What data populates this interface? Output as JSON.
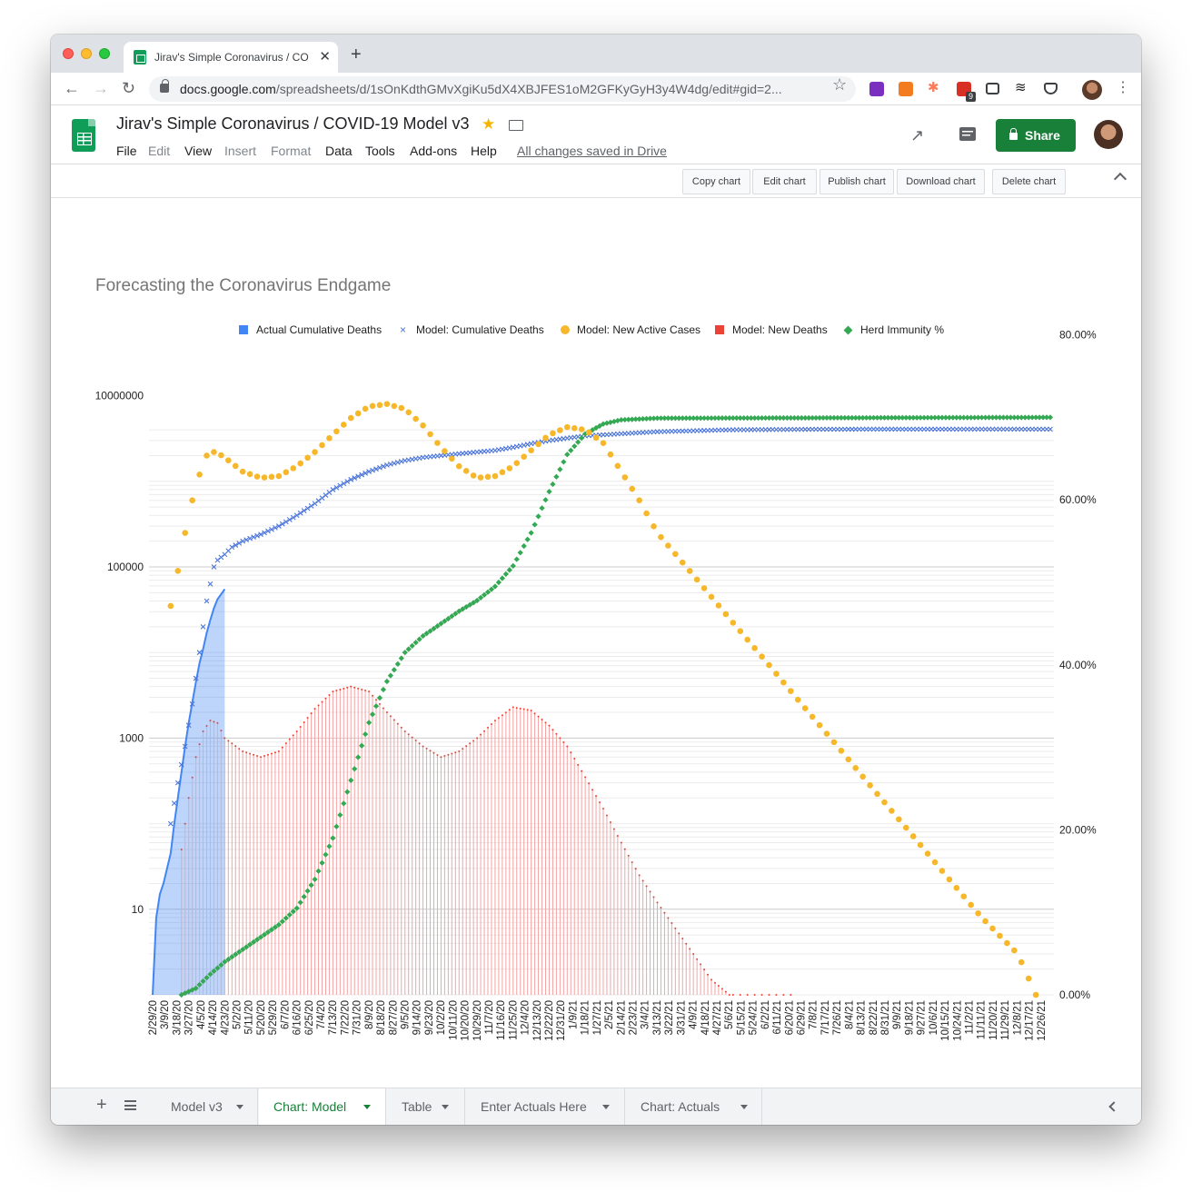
{
  "browser": {
    "tab_title": "Jirav's Simple Coronavirus / CO",
    "url_host": "docs.google.com",
    "url_path": "/spreadsheets/d/1sOnKdthGMvXgiKu5dX4XBJFES1oM2GFKyGyH3y4W4dg/edit#gid=2...",
    "extension_badge": "9"
  },
  "docs": {
    "title": "Jirav's Simple Coronavirus / COVID-19 Model v3",
    "menu": [
      "File",
      "Edit",
      "View",
      "Insert",
      "Format",
      "Data",
      "Tools",
      "Add-ons",
      "Help"
    ],
    "saved_status": "All changes saved in Drive",
    "share_label": "Share"
  },
  "chart_toolbar": {
    "buttons": [
      "Copy chart",
      "Edit chart",
      "Publish chart",
      "Download chart",
      "Delete chart"
    ]
  },
  "sheet_tabs": [
    "Model v3",
    "Chart: Model",
    "Table",
    "Enter Actuals Here",
    "Chart: Actuals"
  ],
  "active_sheet": "Chart: Model",
  "colors": {
    "actual_deaths": "#4285f4",
    "model_cum_deaths": "#4a74d9",
    "new_active_cases": "#f6b82a",
    "new_deaths": "#ea4335",
    "herd_immunity": "#34a853"
  },
  "chart_data": {
    "type": "line",
    "title": "Forecasting the Coronavirus Endgame",
    "legend_position": "top",
    "legend": [
      "Actual Cumulative Deaths",
      "Model: Cumulative Deaths",
      "Model: New Active Cases",
      "Model: New Deaths",
      "Herd Immunity %"
    ],
    "x_tick_labels": [
      "2/29/20",
      "3/9/20",
      "3/18/20",
      "3/27/20",
      "4/5/20",
      "4/14/20",
      "4/23/20",
      "5/2/20",
      "5/11/20",
      "5/20/20",
      "5/29/20",
      "6/7/20",
      "6/16/20",
      "6/25/20",
      "7/4/20",
      "7/13/20",
      "7/22/20",
      "7/31/20",
      "8/9/20",
      "8/18/20",
      "8/27/20",
      "9/5/20",
      "9/14/20",
      "9/23/20",
      "10/2/20",
      "10/11/20",
      "10/20/20",
      "10/29/20",
      "11/7/20",
      "11/16/20",
      "11/25/20",
      "12/4/20",
      "12/13/20",
      "12/22/20",
      "12/31/20",
      "1/9/21",
      "1/18/21",
      "1/27/21",
      "2/5/21",
      "2/14/21",
      "2/23/21",
      "3/4/21",
      "3/13/21",
      "3/22/21",
      "3/31/21",
      "4/9/21",
      "4/18/21",
      "4/27/21",
      "5/6/21",
      "5/15/21",
      "5/24/21",
      "6/2/21",
      "6/11/21",
      "6/20/21",
      "6/29/21",
      "7/8/21",
      "7/17/21",
      "7/26/21",
      "8/4/21",
      "8/13/21",
      "8/22/21",
      "8/31/21",
      "9/9/21",
      "9/18/21",
      "9/27/21",
      "10/6/21",
      "10/15/21",
      "10/24/21",
      "11/2/21",
      "11/11/21",
      "11/20/21",
      "11/29/21",
      "12/8/21",
      "12/17/21",
      "12/26/21"
    ],
    "left_axis": {
      "scale": "log",
      "tick_labels": [
        "10",
        "1000",
        "100000",
        "10000000"
      ]
    },
    "right_axis": {
      "tick_labels": [
        "0.00%",
        "20.00%",
        "40.00%",
        "60.00%",
        "80.00%"
      ],
      "ylim": [
        0,
        80
      ]
    },
    "series": [
      {
        "name": "Actual Cumulative Deaths",
        "style": "area",
        "axis": "left",
        "x_index": [
          0,
          1,
          2,
          3,
          4,
          5,
          6,
          7,
          8,
          9,
          10,
          11,
          12,
          13,
          14,
          15,
          16,
          17,
          18,
          19,
          20
        ],
        "values": [
          1,
          8,
          15,
          20,
          30,
          45,
          100,
          200,
          400,
          800,
          1500,
          2600,
          4500,
          7500,
          11000,
          17000,
          24000,
          33000,
          42000,
          48000,
          55000
        ]
      },
      {
        "name": "Model: Cumulative Deaths",
        "style": "x-marker",
        "axis": "left",
        "knots": [
          [
            5,
            100
          ],
          [
            7,
            300
          ],
          [
            9,
            800
          ],
          [
            11,
            2500
          ],
          [
            13,
            10000
          ],
          [
            15,
            40000
          ],
          [
            17,
            100000
          ],
          [
            18,
            120000
          ],
          [
            20,
            140000
          ],
          [
            22,
            170000
          ],
          [
            25,
            200000
          ],
          [
            30,
            240000
          ],
          [
            35,
            300000
          ],
          [
            40,
            400000
          ],
          [
            45,
            550000
          ],
          [
            50,
            800000
          ],
          [
            55,
            1050000
          ],
          [
            60,
            1300000
          ],
          [
            65,
            1550000
          ],
          [
            70,
            1750000
          ],
          [
            75,
            1900000
          ],
          [
            80,
            2000000
          ],
          [
            85,
            2100000
          ],
          [
            90,
            2200000
          ],
          [
            95,
            2300000
          ],
          [
            100,
            2500000
          ],
          [
            105,
            2750000
          ],
          [
            110,
            3000000
          ],
          [
            120,
            3400000
          ],
          [
            130,
            3600000
          ],
          [
            140,
            3800000
          ],
          [
            150,
            3900000
          ],
          [
            160,
            4000000
          ],
          [
            180,
            4050000
          ],
          [
            200,
            4070000
          ],
          [
            249,
            4070000
          ]
        ]
      },
      {
        "name": "Model: New Active Cases",
        "style": "dot",
        "axis": "left",
        "knots": [
          [
            5,
            35000
          ],
          [
            7,
            90000
          ],
          [
            9,
            250000
          ],
          [
            11,
            600000
          ],
          [
            13,
            1200000
          ],
          [
            15,
            2000000
          ],
          [
            17,
            2200000
          ],
          [
            18,
            2150000
          ],
          [
            20,
            1900000
          ],
          [
            25,
            1300000
          ],
          [
            30,
            1100000
          ],
          [
            35,
            1150000
          ],
          [
            40,
            1500000
          ],
          [
            45,
            2200000
          ],
          [
            50,
            3500000
          ],
          [
            55,
            5500000
          ],
          [
            60,
            7500000
          ],
          [
            65,
            8000000
          ],
          [
            70,
            7000000
          ],
          [
            75,
            4500000
          ],
          [
            80,
            2500000
          ],
          [
            85,
            1500000
          ],
          [
            90,
            1100000
          ],
          [
            95,
            1150000
          ],
          [
            100,
            1500000
          ],
          [
            105,
            2300000
          ],
          [
            110,
            3500000
          ],
          [
            115,
            4300000
          ],
          [
            120,
            4000000
          ],
          [
            125,
            2800000
          ],
          [
            130,
            1300000
          ],
          [
            135,
            600000
          ],
          [
            140,
            250000
          ],
          [
            150,
            80000
          ],
          [
            160,
            25000
          ],
          [
            170,
            8000
          ],
          [
            180,
            2500
          ],
          [
            190,
            800
          ],
          [
            200,
            250
          ],
          [
            210,
            80
          ],
          [
            220,
            25
          ],
          [
            230,
            8
          ],
          [
            240,
            3
          ],
          [
            245,
            1
          ]
        ]
      },
      {
        "name": "Model: New Deaths",
        "style": "stem",
        "axis": "left",
        "knots": [
          [
            8,
            50
          ],
          [
            10,
            200
          ],
          [
            12,
            600
          ],
          [
            14,
            1200
          ],
          [
            16,
            1600
          ],
          [
            18,
            1500
          ],
          [
            20,
            1000
          ],
          [
            25,
            700
          ],
          [
            30,
            600
          ],
          [
            35,
            700
          ],
          [
            40,
            1200
          ],
          [
            45,
            2200
          ],
          [
            50,
            3500
          ],
          [
            55,
            4000
          ],
          [
            60,
            3500
          ],
          [
            65,
            2000
          ],
          [
            70,
            1200
          ],
          [
            75,
            800
          ],
          [
            80,
            600
          ],
          [
            85,
            700
          ],
          [
            90,
            1000
          ],
          [
            95,
            1600
          ],
          [
            100,
            2300
          ],
          [
            105,
            2100
          ],
          [
            110,
            1400
          ],
          [
            115,
            800
          ],
          [
            120,
            350
          ],
          [
            125,
            150
          ],
          [
            130,
            60
          ],
          [
            135,
            25
          ],
          [
            140,
            12
          ],
          [
            145,
            6
          ],
          [
            150,
            3
          ],
          [
            155,
            1.5
          ],
          [
            160,
            1
          ]
        ]
      },
      {
        "name": "Herd Immunity %",
        "style": "diamond",
        "axis": "right",
        "knots": [
          [
            8,
            0
          ],
          [
            12,
            0.8
          ],
          [
            16,
            2.5
          ],
          [
            20,
            4
          ],
          [
            25,
            5.5
          ],
          [
            30,
            7
          ],
          [
            35,
            8.5
          ],
          [
            40,
            10.5
          ],
          [
            45,
            14
          ],
          [
            50,
            19
          ],
          [
            55,
            26
          ],
          [
            60,
            33
          ],
          [
            65,
            38
          ],
          [
            70,
            41.5
          ],
          [
            75,
            43.5
          ],
          [
            80,
            45
          ],
          [
            85,
            46.5
          ],
          [
            90,
            47.8
          ],
          [
            95,
            49.5
          ],
          [
            100,
            52
          ],
          [
            105,
            56
          ],
          [
            110,
            61
          ],
          [
            115,
            65.5
          ],
          [
            120,
            68
          ],
          [
            125,
            69.2
          ],
          [
            130,
            69.7
          ],
          [
            140,
            69.9
          ],
          [
            249,
            70
          ]
        ]
      }
    ]
  }
}
